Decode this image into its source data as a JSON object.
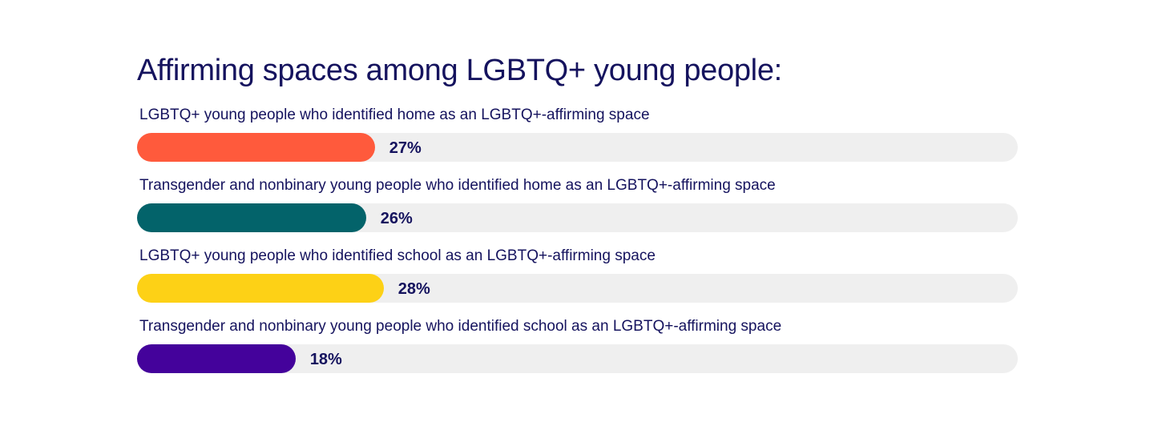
{
  "chart_data": {
    "type": "bar",
    "orientation": "horizontal",
    "title": "Affirming spaces among LGBTQ+ young people:",
    "xlim": [
      0,
      100
    ],
    "grid": false,
    "legend": "none",
    "bar_shape": "rounded",
    "categories": [
      "LGBTQ+ young people who identified home as an LGBTQ+-affirming space",
      "Transgender and nonbinary young people who identified home as an LGBTQ+-affirming space",
      "LGBTQ+ young people who identified school as an LGBTQ+-affirming space",
      "Transgender and nonbinary young people who identified school as an LGBTQ+-affirming space"
    ],
    "values": [
      27,
      26,
      28,
      18
    ],
    "value_labels": [
      "27%",
      "26%",
      "28%",
      "18%"
    ],
    "colors": [
      "#ff5a3c",
      "#03636a",
      "#fdd116",
      "#44029b"
    ],
    "track_color": "#efefef",
    "text_color": "#15135e"
  }
}
